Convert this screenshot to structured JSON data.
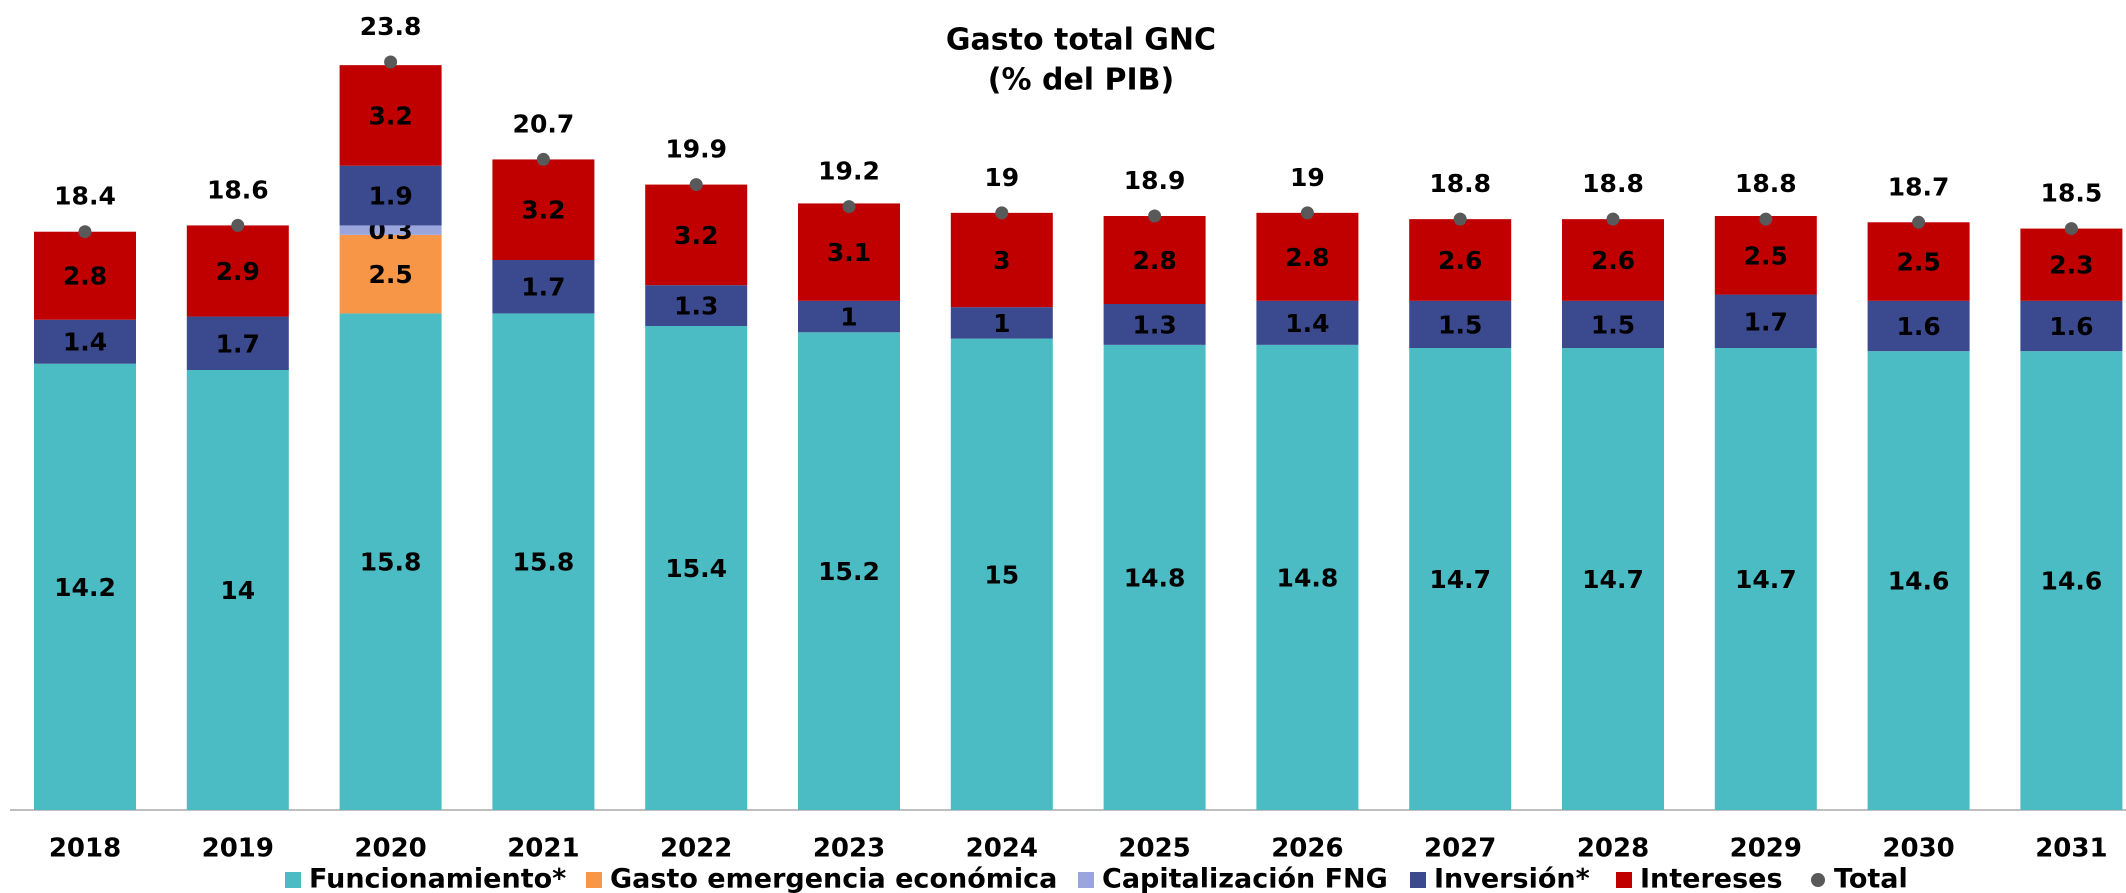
{
  "chart_data": {
    "type": "bar",
    "stacked": true,
    "title": "Gasto total GNC",
    "subtitle": "(% del PIB)",
    "categories": [
      "2018",
      "2019",
      "2020",
      "2021",
      "2022",
      "2023",
      "2024",
      "2025",
      "2026",
      "2027",
      "2028",
      "2029",
      "2030",
      "2031"
    ],
    "series": [
      {
        "name": "Funcionamiento*",
        "color": "#4bbcc4",
        "values": [
          14.2,
          14.0,
          15.8,
          15.8,
          15.4,
          15.2,
          15.0,
          14.8,
          14.8,
          14.7,
          14.7,
          14.7,
          14.6,
          14.6
        ]
      },
      {
        "name": "Gasto emergencia económica",
        "color": "#f79646",
        "values": [
          null,
          null,
          2.5,
          null,
          null,
          null,
          null,
          null,
          null,
          null,
          null,
          null,
          null,
          null
        ]
      },
      {
        "name": "Capitalización FNG",
        "color": "#9aa5dc",
        "values": [
          null,
          null,
          0.3,
          null,
          null,
          null,
          null,
          null,
          null,
          null,
          null,
          null,
          null,
          null
        ]
      },
      {
        "name": "Inversión*",
        "color": "#3b4a8f",
        "values": [
          1.4,
          1.7,
          1.9,
          1.7,
          1.3,
          1.0,
          1.0,
          1.3,
          1.4,
          1.5,
          1.5,
          1.7,
          1.6,
          1.6
        ]
      },
      {
        "name": "Intereses",
        "color": "#c00000",
        "values": [
          2.8,
          2.9,
          3.2,
          3.2,
          3.2,
          3.1,
          3.0,
          2.8,
          2.8,
          2.6,
          2.6,
          2.5,
          2.5,
          2.3
        ]
      },
      {
        "name": "Total",
        "type": "scatter",
        "color": "#595959",
        "values": [
          18.4,
          18.6,
          23.8,
          20.7,
          19.9,
          19.2,
          19.0,
          18.9,
          19.0,
          18.8,
          18.8,
          18.8,
          18.7,
          18.5
        ]
      }
    ]
  }
}
